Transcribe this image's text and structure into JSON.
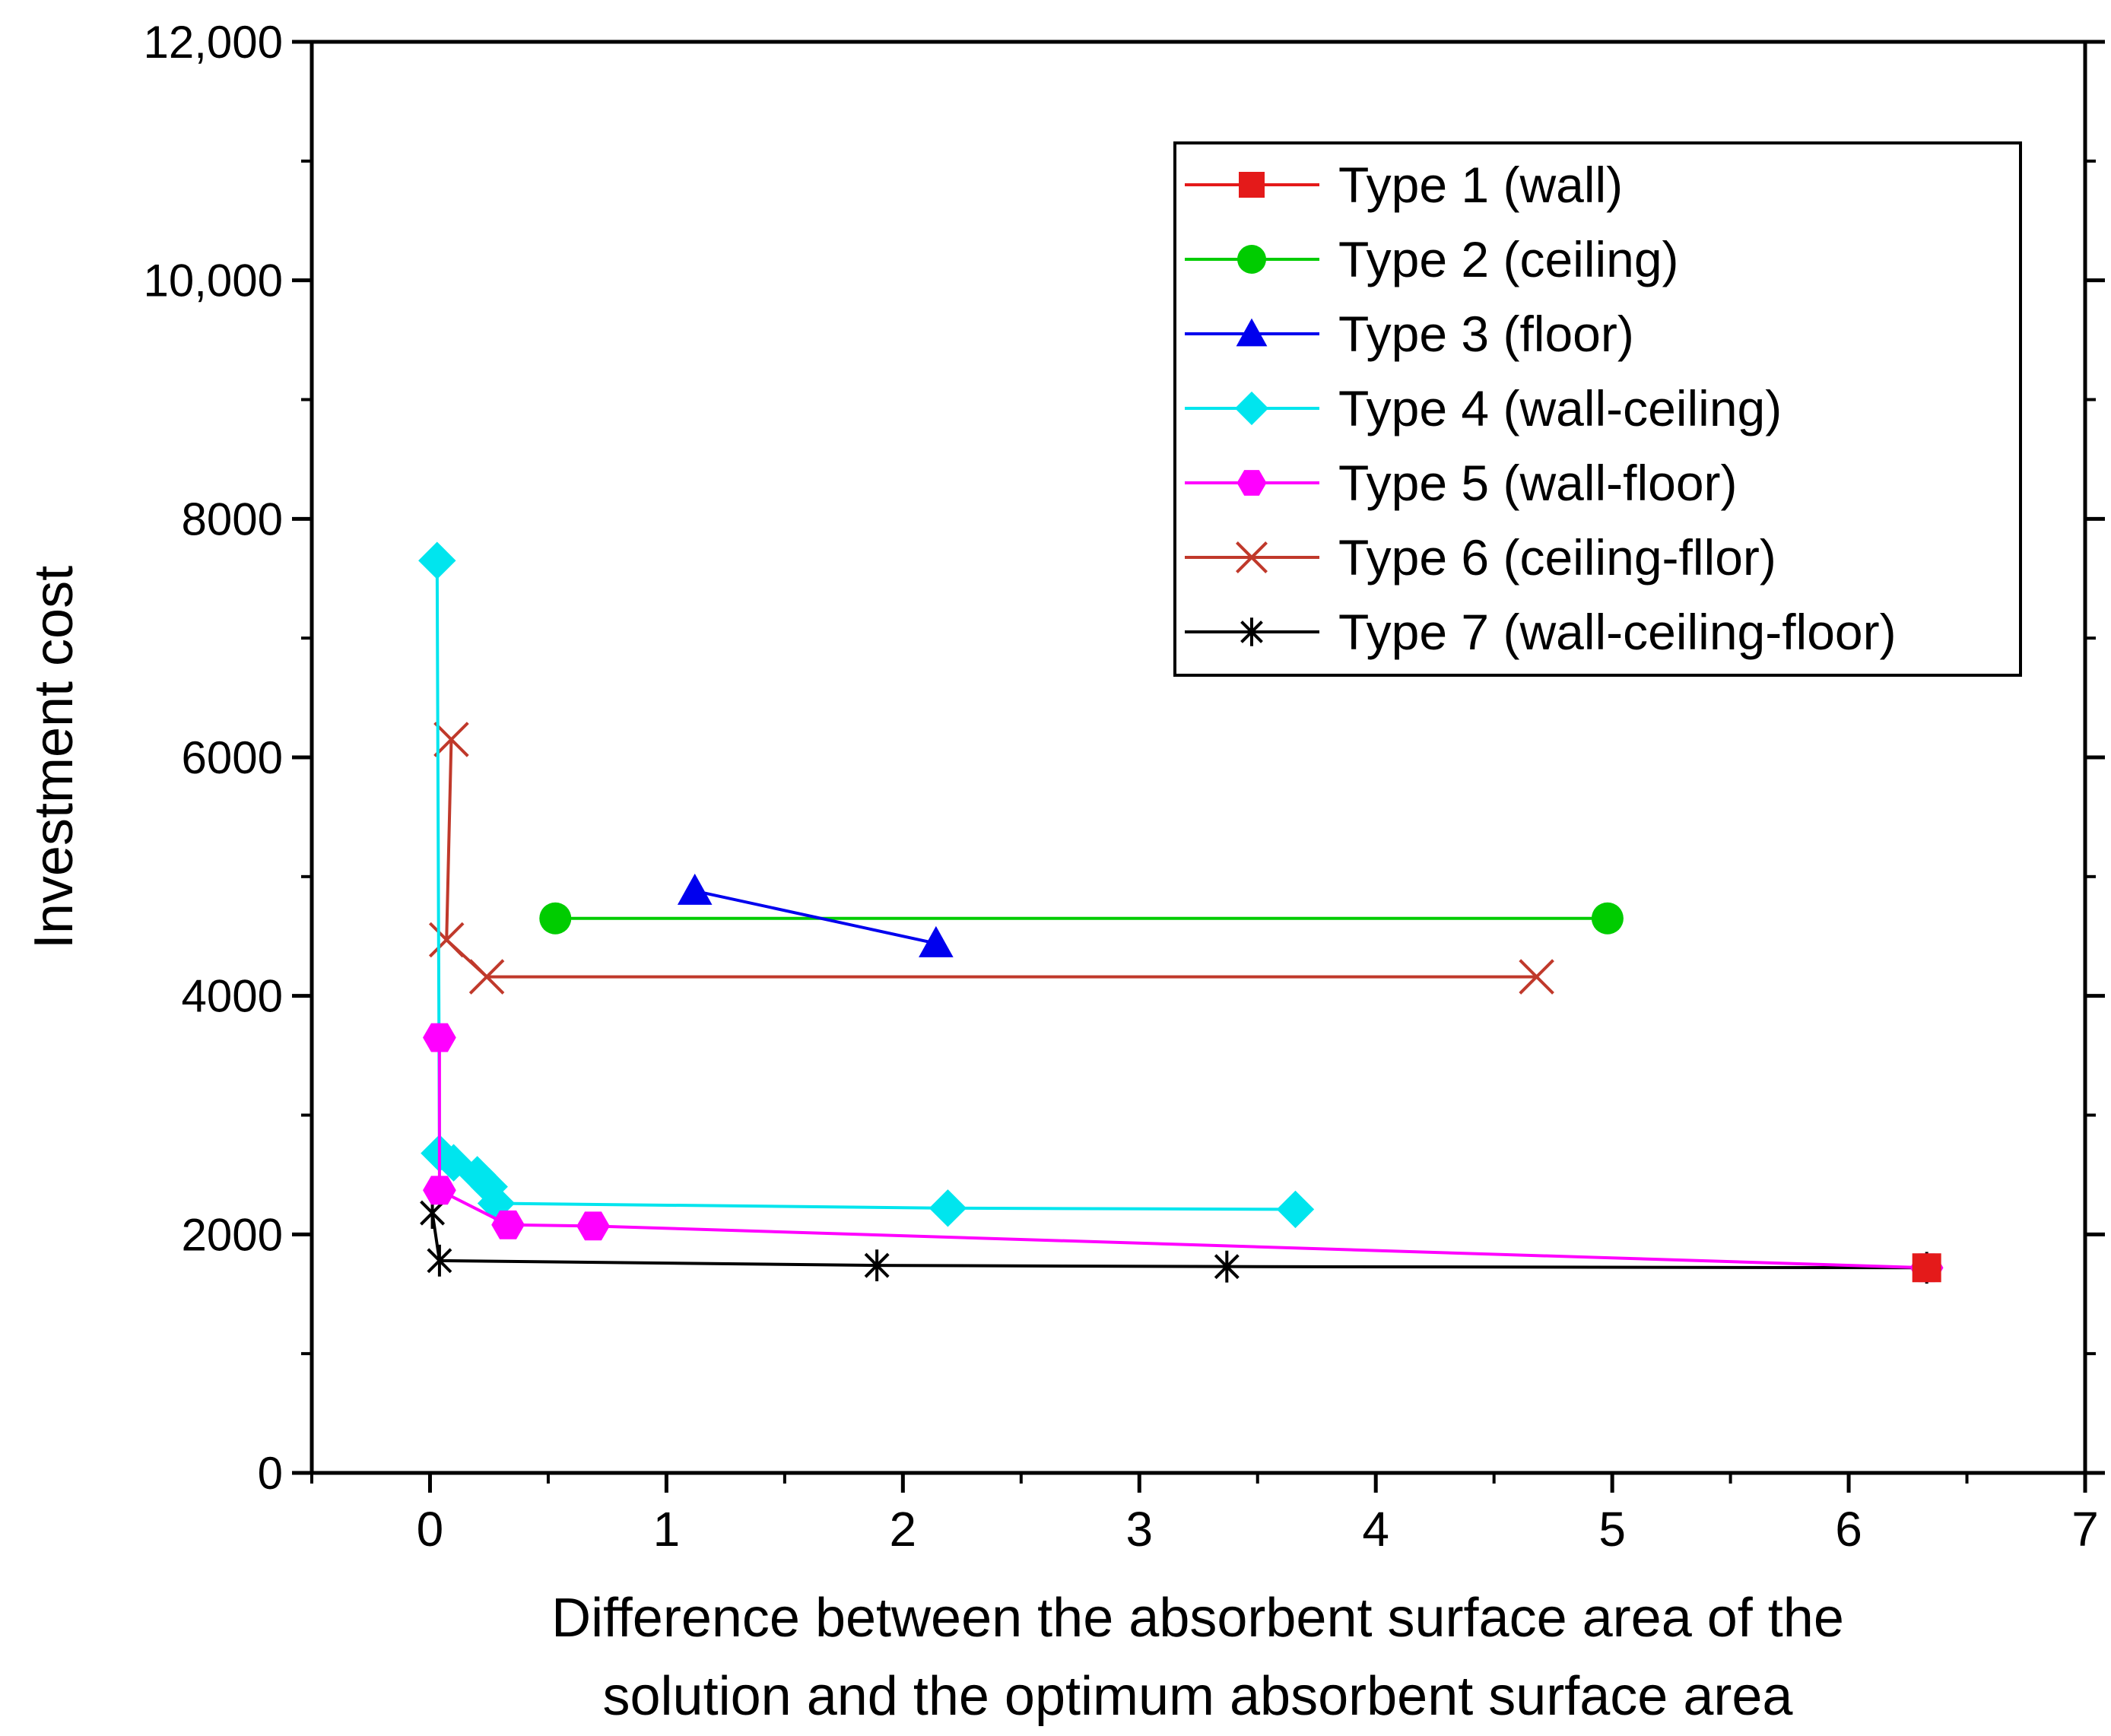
{
  "chart_data": {
    "type": "line",
    "title": "",
    "xlabel": [
      "Difference between the absorbent surface area of the",
      "solution and the optimum absorbent surface area"
    ],
    "ylabel": "Investment cost",
    "xlim": [
      -0.5,
      7
    ],
    "ylim": [
      0,
      12000
    ],
    "xticks": [
      0,
      1,
      2,
      3,
      4,
      5,
      6,
      7
    ],
    "xtick_labels": [
      "0",
      "1",
      "2",
      "3",
      "4",
      "5",
      "6",
      "7"
    ],
    "yticks": [
      0,
      2000,
      4000,
      6000,
      8000,
      10000,
      12000
    ],
    "ytick_labels": [
      "0",
      "2000",
      "4000",
      "6000",
      "8000",
      "10,000",
      "12,000"
    ],
    "legend_position": "top-right",
    "series": [
      {
        "name": "Type 1 (wall)",
        "color": "#e41a1a",
        "marker": "square",
        "points": [
          [
            6.33,
            1720
          ]
        ]
      },
      {
        "name": "Type 2 (ceiling)",
        "color": "#00cc00",
        "marker": "circle",
        "points": [
          [
            0.53,
            4650
          ],
          [
            4.98,
            4650
          ]
        ]
      },
      {
        "name": "Type 3 (floor)",
        "color": "#0000ee",
        "marker": "triangle",
        "points": [
          [
            1.12,
            4880
          ],
          [
            2.14,
            4440
          ]
        ]
      },
      {
        "name": "Type 4 (wall-ceiling)",
        "color": "#00e5ee",
        "marker": "diamond",
        "points": [
          [
            0.03,
            7650
          ],
          [
            0.04,
            2680
          ],
          [
            0.1,
            2600
          ],
          [
            0.2,
            2500
          ],
          [
            0.25,
            2400
          ],
          [
            0.28,
            2260
          ],
          [
            2.19,
            2220
          ],
          [
            3.66,
            2210
          ]
        ]
      },
      {
        "name": "Type 5 (wall-floor)",
        "color": "#ff00ff",
        "marker": "hexagon",
        "points": [
          [
            0.04,
            3650
          ],
          [
            0.04,
            2370
          ],
          [
            0.33,
            2080
          ],
          [
            0.69,
            2070
          ],
          [
            6.33,
            1720
          ]
        ]
      },
      {
        "name": "Type 6 (ceiling-fllor)",
        "color": "#c0392b",
        "marker": "x",
        "points": [
          [
            0.09,
            6150
          ],
          [
            0.07,
            4470
          ],
          [
            0.24,
            4160
          ],
          [
            4.68,
            4160
          ]
        ]
      },
      {
        "name": "Type 7 (wall-ceiling-floor)",
        "color": "#000000",
        "marker": "asterisk",
        "points": [
          [
            0.01,
            2180
          ],
          [
            0.04,
            1780
          ],
          [
            1.89,
            1740
          ],
          [
            3.37,
            1730
          ],
          [
            6.33,
            1720
          ]
        ]
      }
    ]
  }
}
